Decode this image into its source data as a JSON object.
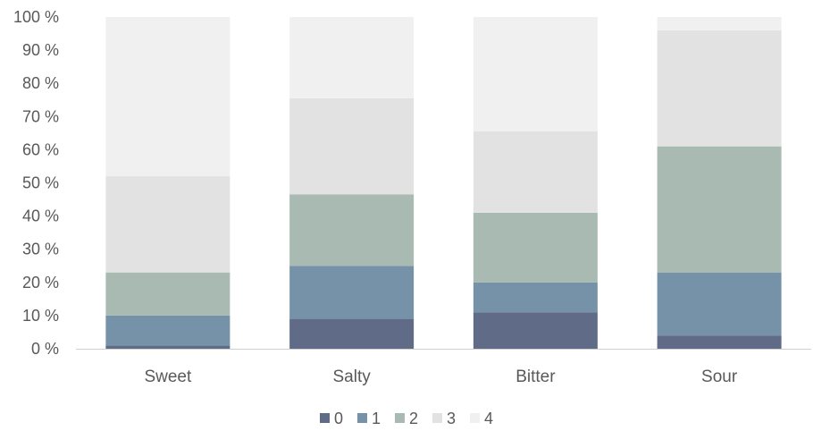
{
  "chart_data": {
    "type": "bar",
    "stacked": true,
    "percent": true,
    "categories": [
      "Sweet",
      "Salty",
      "Bitter",
      "Sour"
    ],
    "series": [
      {
        "name": "0",
        "color": "#5f6b87",
        "values": [
          1,
          9,
          11,
          4
        ]
      },
      {
        "name": "1",
        "color": "#7692a8",
        "values": [
          9,
          16,
          9,
          19
        ]
      },
      {
        "name": "2",
        "color": "#a8bab2",
        "values": [
          13,
          21.5,
          21,
          38
        ]
      },
      {
        "name": "3",
        "color": "#e2e2e2",
        "values": [
          29,
          29,
          24.5,
          35
        ]
      },
      {
        "name": "4",
        "color": "#f0f0f0",
        "values": [
          48,
          24.5,
          34.5,
          4
        ]
      }
    ],
    "yticks": [
      "0 %",
      "10 %",
      "20 %",
      "30 %",
      "40 %",
      "50 %",
      "60 %",
      "70 %",
      "80 %",
      "90 %",
      "100 %"
    ],
    "ylim": [
      0,
      100
    ],
    "grid": false,
    "legend_position": "bottom"
  }
}
